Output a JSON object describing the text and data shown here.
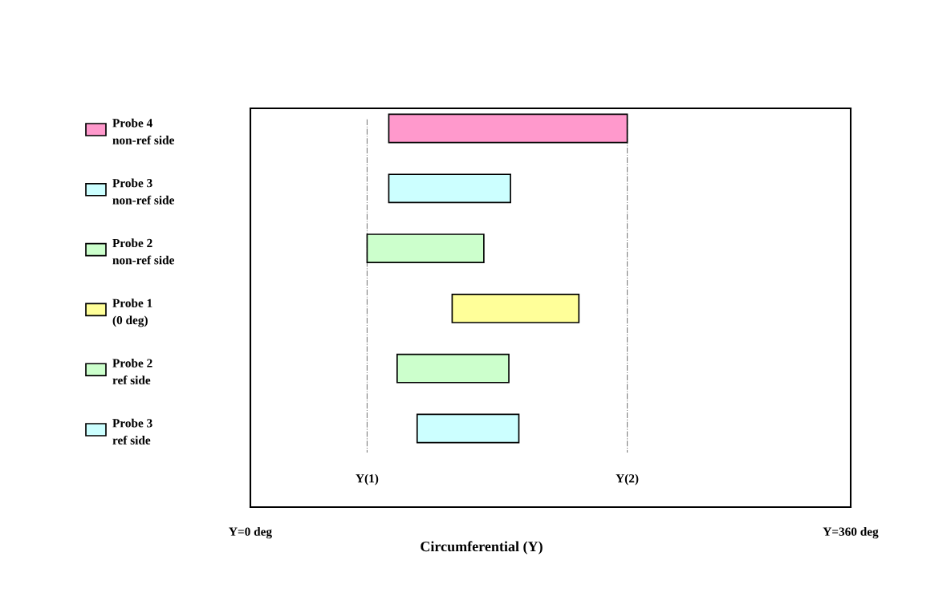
{
  "chart_data": {
    "type": "bar",
    "orientation": "horizontal",
    "xlabel": "Circumferential (Y)",
    "categories": [
      "Probe 4\nnon-ref side",
      "Probe 3\nnon-ref side",
      "Probe 2\nnon-ref side",
      "Probe 1\n(0 deg)",
      "Probe 2\nref side",
      "Probe 3\nref side"
    ],
    "base": [
      83,
      83,
      70,
      121,
      88,
      100
    ],
    "values": [
      143,
      73,
      70,
      76,
      67,
      61
    ],
    "colors": [
      "#ff99cc",
      "#ccffff",
      "#ccffcc",
      "#ffff99",
      "#ccffcc",
      "#ccffff"
    ],
    "xlim": [
      0,
      360
    ],
    "xticks": [
      {
        "value": 0,
        "label": "Y=0 deg"
      },
      {
        "value": 360,
        "label": "Y=360 deg"
      }
    ],
    "ref_lines": [
      {
        "axis": "x",
        "value": 70,
        "label": "Y(1)",
        "color": "#808080",
        "line_style": "dashdot"
      },
      {
        "axis": "x",
        "value": 226,
        "label": "Y(2)",
        "color": "#808080",
        "line_style": "dashdot"
      }
    ],
    "grid": false,
    "legend": false
  }
}
